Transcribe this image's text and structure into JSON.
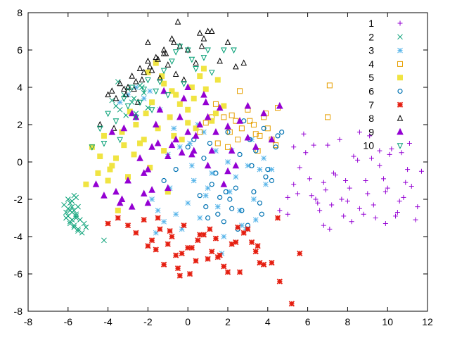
{
  "chart_data": {
    "type": "scatter",
    "title": "",
    "xlabel": "",
    "ylabel": "",
    "xlim": [
      -8,
      12
    ],
    "ylim": [
      -8,
      8
    ],
    "xticks": [
      -8,
      -6,
      -4,
      -2,
      0,
      2,
      4,
      6,
      8,
      10,
      12
    ],
    "yticks": [
      -8,
      -6,
      -4,
      -2,
      0,
      2,
      4,
      6,
      8
    ],
    "grid": false,
    "legend_position": "top-right",
    "series": [
      {
        "name": "1",
        "color": "#9400d3",
        "marker": "plus",
        "x": [
          4.6,
          5.0,
          5.3,
          5.6,
          5.9,
          6.2,
          6.5,
          6.8,
          7.0,
          7.3,
          7.6,
          7.8,
          8.1,
          8.3,
          8.6,
          8.9,
          9.1,
          9.4,
          9.6,
          9.9,
          10.2,
          10.5,
          10.8,
          11.1,
          11.4,
          11.7,
          5.3,
          6.1,
          6.9,
          7.7,
          8.5,
          9.3,
          10.1,
          10.9,
          11.5,
          5.8,
          6.6,
          7.4,
          8.2,
          9.0,
          9.8,
          10.6,
          11.2,
          6.3,
          7.1,
          7.9,
          8.8,
          9.6,
          10.4,
          5.5,
          6.8,
          8.0,
          9.2,
          10.0,
          11.0,
          7.2,
          8.6,
          9.9,
          10.7,
          5.0,
          6.4
        ],
        "y": [
          -2.6,
          -2.8,
          -1.2,
          -0.3,
          0.5,
          -1.8,
          -2.2,
          -3.4,
          0.9,
          -0.6,
          1.2,
          -2.9,
          -1.4,
          0.3,
          -2.5,
          -1.0,
          1.4,
          -3.0,
          -0.2,
          -1.6,
          0.7,
          -2.7,
          -1.9,
          1.0,
          -3.1,
          -0.5,
          0.8,
          -0.9,
          -1.5,
          -2.0,
          0.1,
          -2.3,
          0.4,
          -1.1,
          -2.4,
          1.5,
          -2.6,
          -0.7,
          -3.2,
          -1.7,
          -0.9,
          -2.1,
          -1.3,
          0.9,
          -3.6,
          -1.0,
          -2.8,
          0.6,
          -2.9,
          -1.7,
          -1.1,
          -2.1,
          0.2,
          -1.4,
          -0.4,
          -2.3,
          1.6,
          -3.3,
          0.5,
          -1.9,
          -2.0
        ]
      },
      {
        "name": "2",
        "color": "#009e73",
        "marker": "cross",
        "x": [
          -6.0,
          -5.9,
          -5.8,
          -5.7,
          -5.6,
          -6.1,
          -5.9,
          -5.7,
          -5.5,
          -6.0,
          -5.8,
          -5.6,
          -5.4,
          -5.9,
          -5.7,
          -5.5,
          -6.2,
          -5.8,
          -5.6,
          -5.3,
          -6.0,
          -5.7,
          -5.5,
          -5.2,
          -5.9,
          -5.6,
          -5.1,
          -6.1,
          -5.8,
          -4.2,
          -3.8,
          -3.6,
          -3.4,
          -3.2,
          -3.0,
          -2.8,
          -2.6,
          -2.4,
          -2.2,
          -2.0,
          -3.5,
          -3.1,
          -2.7,
          -2.3
        ],
        "y": [
          -2.0,
          -2.2,
          -2.4,
          -2.6,
          -2.8,
          -3.0,
          -3.2,
          -3.4,
          -3.6,
          -2.5,
          -2.7,
          -2.9,
          -3.1,
          -3.3,
          -3.5,
          -3.7,
          -2.3,
          -2.1,
          -1.9,
          -3.8,
          -2.9,
          -1.8,
          -2.4,
          -3.3,
          -2.6,
          -3.0,
          -3.5,
          -2.7,
          -3.1,
          -4.2,
          3.3,
          3.0,
          2.8,
          3.6,
          3.9,
          3.2,
          2.6,
          4.1,
          3.7,
          2.9,
          4.3,
          2.5,
          3.4,
          4.0
        ]
      },
      {
        "name": "3",
        "color": "#56b4e9",
        "marker": "star",
        "x": [
          -1.8,
          -1.5,
          -1.2,
          -0.9,
          -0.6,
          -0.3,
          0.0,
          0.3,
          0.6,
          0.9,
          1.2,
          1.5,
          1.8,
          2.1,
          2.4,
          2.7,
          3.0,
          3.3,
          3.6,
          3.9,
          -1.6,
          -1.0,
          -0.4,
          0.2,
          0.8,
          1.4,
          2.0,
          2.6,
          3.2,
          3.8,
          -0.7,
          0.5,
          1.7,
          2.9,
          -3.4,
          -3.0,
          -2.6,
          -2.2,
          -1.9,
          -1.4,
          0.1,
          1.0,
          2.2,
          3.4,
          4.2
        ],
        "y": [
          -2.0,
          -2.6,
          -3.2,
          -1.4,
          -2.8,
          -3.6,
          -2.2,
          -1.0,
          -3.0,
          -1.8,
          -0.6,
          -2.4,
          -4.0,
          -1.6,
          -0.8,
          -3.4,
          -0.2,
          -2.0,
          -0.4,
          -1.2,
          -3.8,
          0.4,
          0.8,
          -0.2,
          1.6,
          0.6,
          0.0,
          -2.6,
          1.2,
          0.2,
          1.8,
          2.0,
          -4.9,
          -3.6,
          3.2,
          3.6,
          4.0,
          3.4,
          3.8,
          2.8,
          1.0,
          -1.4,
          0.6,
          -3.1,
          -0.4
        ]
      },
      {
        "name": "4",
        "color": "#e69f00",
        "marker": "square",
        "x": [
          1.8,
          2.1,
          2.4,
          2.7,
          3.0,
          3.3,
          3.6,
          3.9,
          4.2,
          4.5,
          1.2,
          1.5,
          2.0,
          2.5,
          3.1,
          3.5,
          4.0,
          4.4,
          0.6,
          0.9,
          2.6,
          3.8,
          7.1,
          7.0,
          1.4,
          2.2,
          3.4
        ],
        "y": [
          2.4,
          1.6,
          2.2,
          1.8,
          2.8,
          2.0,
          1.4,
          2.6,
          1.2,
          2.9,
          2.4,
          1.0,
          0.8,
          1.2,
          2.2,
          0.6,
          1.8,
          0.9,
          1.6,
          2.1,
          3.8,
          2.4,
          4.1,
          2.4,
          3.1,
          2.5,
          1.5
        ]
      },
      {
        "name": "5",
        "color": "#f0e442",
        "marker": "filled-square",
        "x": [
          -5.1,
          -4.8,
          -4.5,
          -4.2,
          -3.9,
          -3.6,
          -3.3,
          -3.0,
          -2.7,
          -2.4,
          -2.1,
          -1.8,
          -1.5,
          -1.2,
          -0.9,
          -0.6,
          -0.3,
          0.0,
          0.3,
          0.6,
          0.9,
          1.2,
          1.5,
          1.8,
          -2.0,
          -1.6,
          -1.2,
          -0.8,
          -0.4,
          0.2,
          0.8,
          1.4,
          -3.8,
          -3.2,
          -2.6,
          -2.2,
          -1.0,
          0.4,
          -4.4,
          -2.9,
          -1.3,
          0.0,
          -0.7,
          -1.9,
          -4.0,
          -3.5
        ],
        "y": [
          -1.2,
          0.8,
          -0.6,
          1.4,
          -0.4,
          0.2,
          1.6,
          -0.8,
          0.4,
          1.0,
          2.6,
          3.2,
          1.8,
          0.6,
          2.4,
          3.6,
          1.2,
          2.8,
          3.4,
          4.6,
          3.9,
          2.2,
          4.4,
          3.0,
          4.8,
          5.3,
          4.2,
          3.8,
          3.1,
          4.0,
          5.0,
          2.6,
          -0.2,
          0.9,
          2.0,
          1.2,
          -1.6,
          1.8,
          0.3,
          2.7,
          4.6,
          2.1,
          1.4,
          -0.3,
          -1.0,
          -2.6
        ]
      },
      {
        "name": "6",
        "color": "#0072b2",
        "marker": "circle",
        "x": [
          0.6,
          0.9,
          1.2,
          1.5,
          1.8,
          2.1,
          2.4,
          2.7,
          3.0,
          3.3,
          3.6,
          3.9,
          4.2,
          4.5,
          0.3,
          0.8,
          1.4,
          2.0,
          2.6,
          3.2,
          3.8,
          4.4,
          1.0,
          1.6,
          2.2,
          2.8,
          3.4,
          4.0,
          -1.2,
          -0.6,
          0.0,
          1.1,
          2.5,
          3.1,
          4.7,
          3.7,
          1.9
        ],
        "y": [
          -1.8,
          -2.4,
          -1.2,
          -2.8,
          -3.2,
          -2.0,
          -1.4,
          -2.6,
          -3.4,
          -1.6,
          -2.2,
          -0.8,
          -1.0,
          1.4,
          1.2,
          0.2,
          -0.6,
          1.6,
          0.4,
          -0.2,
          1.8,
          0.8,
          -3.0,
          -1.9,
          -2.5,
          2.2,
          0.6,
          -0.4,
          -1.0,
          -0.4,
          0.8,
          1.0,
          -3.6,
          1.2,
          1.6,
          -2.8,
          -1.6
        ]
      },
      {
        "name": "7",
        "color": "#e51e10",
        "marker": "filled-star",
        "x": [
          -4.0,
          -3.5,
          -3.0,
          -2.6,
          -2.2,
          -1.8,
          -1.4,
          -1.0,
          -0.6,
          -0.2,
          0.2,
          0.6,
          1.0,
          1.4,
          1.8,
          2.2,
          2.6,
          3.0,
          3.4,
          3.8,
          4.2,
          4.6,
          5.2,
          5.6,
          -1.6,
          -1.2,
          -0.8,
          -0.4,
          0.0,
          0.4,
          0.8,
          1.2,
          1.6,
          2.0,
          2.4,
          2.8,
          3.2,
          3.6,
          -1.5,
          -0.5,
          0.5,
          1.5,
          2.5,
          3.5,
          4.5,
          -2.0,
          -0.9,
          0.1,
          1.1,
          -0.3
        ],
        "y": [
          -3.3,
          -3.0,
          -3.4,
          -3.8,
          -3.1,
          -4.2,
          -3.6,
          -4.4,
          -5.0,
          -3.4,
          -4.6,
          -3.9,
          -5.2,
          -4.1,
          -5.6,
          -4.4,
          -5.9,
          -3.6,
          -4.8,
          -5.5,
          -5.4,
          -6.4,
          -7.6,
          -4.9,
          -4.7,
          -5.5,
          -4.0,
          -6.1,
          -4.6,
          -5.3,
          -3.9,
          -4.8,
          -5.0,
          -5.9,
          -4.3,
          -3.8,
          -4.3,
          -5.4,
          -3.0,
          -5.7,
          -4.2,
          -5.1,
          -3.5,
          -4.5,
          -3.0,
          -4.5,
          -3.7,
          -6.0,
          -3.6,
          -4.9
        ]
      },
      {
        "name": "8",
        "color": "#000000",
        "marker": "triangle",
        "x": [
          -4.4,
          -4.0,
          -3.8,
          -3.6,
          -3.4,
          -3.2,
          -3.0,
          -2.8,
          -2.6,
          -2.4,
          -2.2,
          -2.0,
          -1.8,
          -1.6,
          -1.4,
          -1.2,
          -1.0,
          -0.8,
          -0.6,
          -0.4,
          -0.2,
          0.0,
          0.4,
          0.8,
          1.2,
          1.6,
          2.0,
          2.4,
          2.8,
          -3.1,
          -2.7,
          -2.3,
          -1.9,
          -1.5,
          -1.1,
          -0.7,
          0.6,
          -0.5,
          0.7,
          1.0,
          -2.0,
          -1.2,
          -3.7,
          -2.5
        ],
        "y": [
          2.0,
          3.6,
          3.8,
          3.4,
          4.2,
          3.9,
          4.0,
          4.6,
          4.3,
          5.0,
          4.8,
          5.4,
          4.9,
          5.6,
          4.5,
          6.0,
          5.2,
          6.6,
          4.7,
          6.2,
          4.4,
          6.0,
          5.3,
          6.6,
          7.0,
          5.4,
          6.4,
          5.1,
          5.3,
          3.6,
          3.9,
          4.4,
          5.1,
          5.5,
          5.8,
          6.4,
          6.9,
          7.5,
          6.2,
          7.0,
          6.4,
          5.8,
          1.8,
          3.2
        ]
      },
      {
        "name": "9",
        "color": "#9400d3",
        "marker": "filled-triangle",
        "x": [
          -4.6,
          -4.2,
          -3.8,
          -3.4,
          -3.0,
          -2.6,
          -2.2,
          -1.8,
          -1.4,
          -1.0,
          -0.6,
          -0.2,
          0.2,
          0.6,
          1.0,
          1.4,
          1.8,
          2.2,
          2.6,
          3.0,
          3.4,
          3.8,
          4.2,
          4.6,
          -3.6,
          -3.2,
          -2.8,
          -2.4,
          -2.0,
          -1.6,
          -1.2,
          -0.8,
          -0.4,
          0.0,
          0.4,
          0.8,
          1.2,
          1.6,
          2.0,
          2.4,
          -3.0,
          -2.0,
          -1.0,
          0.0,
          1.0,
          2.0,
          3.0,
          -2.8,
          -1.5,
          -0.3,
          0.9,
          -3.3,
          -1.8,
          0.3,
          -2.2
        ],
        "y": [
          -1.2,
          -1.8,
          1.6,
          -2.2,
          -1.0,
          2.4,
          -0.6,
          0.8,
          2.8,
          -1.4,
          1.2,
          3.4,
          0.4,
          2.0,
          -0.2,
          1.6,
          -1.2,
          0.6,
          2.2,
          3.0,
          0.8,
          2.6,
          1.2,
          3.0,
          -1.6,
          1.8,
          -2.4,
          0.2,
          -0.4,
          2.0,
          3.8,
          0.9,
          2.4,
          4.0,
          1.4,
          3.6,
          0.6,
          2.9,
          1.9,
          -0.2,
          -1.0,
          -2.2,
          0.3,
          1.6,
          2.4,
          -0.5,
          1.3,
          2.6,
          1.0,
          0.5,
          3.2,
          -2.0,
          -1.5,
          0.6,
          -1.7
        ]
      },
      {
        "name": "10",
        "color": "#009e73",
        "marker": "inverted-triangle",
        "x": [
          -4.8,
          -4.4,
          -4.0,
          -3.6,
          -3.2,
          -2.8,
          -2.4,
          -2.0,
          -1.6,
          -1.2,
          -0.8,
          -0.4,
          0.0,
          0.4,
          0.8,
          1.2,
          1.8,
          -3.4,
          -2.6,
          -1.8,
          -1.0,
          -0.2,
          2.3,
          -4.2,
          -3.0,
          -2.2,
          -1.4,
          -0.6,
          0.2,
          1.0
        ],
        "y": [
          0.8,
          1.8,
          2.6,
          2.2,
          3.4,
          4.0,
          3.2,
          4.4,
          3.8,
          4.9,
          5.4,
          6.2,
          6.0,
          5.0,
          5.6,
          4.8,
          6.0,
          1.2,
          2.4,
          2.8,
          3.6,
          4.2,
          6.0,
          1.0,
          3.0,
          3.9,
          4.3,
          5.9,
          5.5,
          6.0
        ]
      }
    ]
  }
}
